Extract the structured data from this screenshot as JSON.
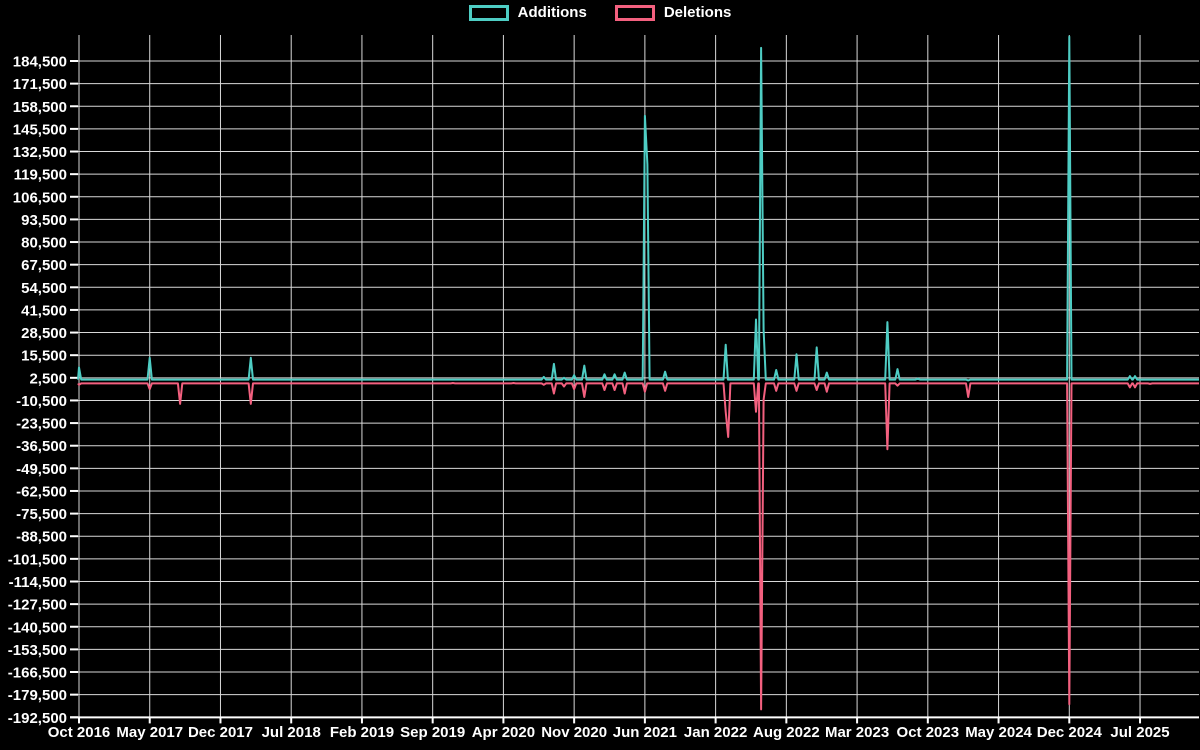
{
  "legend": {
    "items": [
      {
        "label": "Additions",
        "color": "#4ECDC4"
      },
      {
        "label": "Deletions",
        "color": "#F3607F"
      }
    ]
  },
  "chart_data": {
    "type": "line",
    "title": "",
    "xlabel": "",
    "ylabel": "",
    "grid": true,
    "legend_position": "top-center",
    "background": "#000000",
    "colors": {
      "additions": "#4ECDC4",
      "deletions": "#F3607F",
      "grid": "#D9D9D9",
      "axis": "#FFFFFF",
      "text": "#FFFFFF"
    },
    "y_axis": {
      "max": 184500,
      "min": -192500,
      "step": 13000,
      "tick_labels": [
        "184,500",
        "171,500",
        "158,500",
        "145,500",
        "132,500",
        "119,500",
        "106,500",
        "93,500",
        "80,500",
        "67,500",
        "54,500",
        "41,500",
        "28,500",
        "15,500",
        "2,500",
        "-10,500",
        "-23,500",
        "-36,500",
        "-49,500",
        "-62,500",
        "-75,500",
        "-88,500",
        "-101,500",
        "-114,500",
        "-127,500",
        "-140,500",
        "-153,500",
        "-166,500",
        "-179,500",
        "-192,500"
      ]
    },
    "x_axis": {
      "start_month": "2016-10",
      "end_month": "2025-07",
      "months_per_tick": 7,
      "tick_labels": [
        "Oct 2016",
        "May 2017",
        "Dec 2017",
        "Jul 2018",
        "Feb 2019",
        "Sep 2019",
        "Apr 2020",
        "Nov 2020",
        "Jun 2021",
        "Jan 2022",
        "Aug 2022",
        "Mar 2023",
        "Oct 2023",
        "May 2024",
        "Dec 2024",
        "Jul 2025"
      ]
    },
    "baseline": {
      "additions": 1500,
      "deletions": -700
    },
    "series": [
      {
        "name": "Additions",
        "key": "a"
      },
      {
        "name": "Deletions",
        "key": "d"
      }
    ],
    "points": [
      {
        "m": "2016-10",
        "a": 8500,
        "d": -1500
      },
      {
        "m": "2017-03",
        "d": -700
      },
      {
        "m": "2017-05",
        "a": 14000,
        "d": -4000
      },
      {
        "m": "2017-08",
        "d": -12500
      },
      {
        "m": "2018-03",
        "a": 14000,
        "d": -12500
      },
      {
        "m": "2019-11",
        "d": -500
      },
      {
        "m": "2020-05",
        "d": -500
      },
      {
        "m": "2020-08",
        "a": 3000,
        "d": -1500
      },
      {
        "m": "2020-09",
        "a": 10500,
        "d": -6500
      },
      {
        "m": "2020-10",
        "a": 2500,
        "d": -2500
      },
      {
        "m": "2020-11",
        "a": 4000,
        "d": -4000
      },
      {
        "m": "2020-12",
        "a": 9500,
        "d": -8500
      },
      {
        "m": "2021-02",
        "a": 4500,
        "d": -4500
      },
      {
        "m": "2021-03",
        "a": 4500,
        "d": -4500
      },
      {
        "m": "2021-04",
        "a": 5500,
        "d": -6500
      },
      {
        "m": "2021-06",
        "a": 153000,
        "d": -5500
      },
      {
        "m": "2021-06",
        "w": 1,
        "a": 125000
      },
      {
        "m": "2021-08",
        "a": 6000,
        "d": -5000
      },
      {
        "m": "2022-02",
        "a": 21500,
        "d": -17000
      },
      {
        "m": "2022-02",
        "w": 1,
        "d": -31500
      },
      {
        "m": "2022-05",
        "a": 36000,
        "d": -17000
      },
      {
        "m": "2022-05",
        "w": 2,
        "a": 192000,
        "d": -188000
      },
      {
        "m": "2022-05",
        "w": 3,
        "a": 30000,
        "d": -10000
      },
      {
        "m": "2022-07",
        "a": 7000,
        "d": -5000
      },
      {
        "m": "2022-09",
        "a": 16000,
        "d": -5000
      },
      {
        "m": "2022-11",
        "a": 20000,
        "d": -4500
      },
      {
        "m": "2022-12",
        "a": 5500,
        "d": -5500
      },
      {
        "m": "2023-06",
        "a": 34500,
        "d": -38500
      },
      {
        "m": "2023-07",
        "a": 7500,
        "d": -2000
      },
      {
        "m": "2023-09",
        "a": 2000
      },
      {
        "m": "2023-11",
        "d": -700
      },
      {
        "m": "2024-02",
        "a": 1000,
        "d": -8500
      },
      {
        "m": "2024-12",
        "a": 198500,
        "d": -185000
      },
      {
        "m": "2025-06",
        "a": 3500,
        "d": -3000
      },
      {
        "m": "2025-06",
        "w": 2,
        "a": 3500,
        "d": -3000
      },
      {
        "m": "2025-08",
        "d": -1000
      }
    ]
  }
}
